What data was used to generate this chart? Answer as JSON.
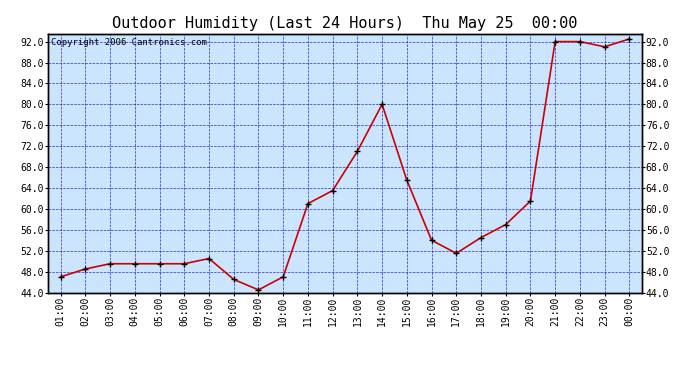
{
  "title": "Outdoor Humidity (Last 24 Hours)  Thu May 25  00:00",
  "copyright": "Copyright 2006 Cantronics.com",
  "x_labels": [
    "01:00",
    "02:00",
    "03:00",
    "04:00",
    "05:00",
    "06:00",
    "07:00",
    "08:00",
    "09:00",
    "10:00",
    "11:00",
    "12:00",
    "13:00",
    "14:00",
    "15:00",
    "16:00",
    "17:00",
    "18:00",
    "19:00",
    "20:00",
    "21:00",
    "22:00",
    "23:00",
    "00:00"
  ],
  "y_values": [
    47.0,
    48.5,
    49.5,
    49.5,
    49.5,
    49.5,
    50.5,
    46.5,
    44.5,
    47.0,
    61.0,
    63.5,
    71.0,
    80.0,
    65.5,
    54.0,
    51.5,
    54.5,
    57.0,
    61.5,
    92.0,
    92.0,
    91.0,
    92.5
  ],
  "line_color": "#cc0000",
  "marker_color": "#000000",
  "plot_bg": "#cce5ff",
  "outer_bg": "#ffffff",
  "grid_color": "#0000bb",
  "title_color": "#000000",
  "ylim": [
    44.0,
    93.5
  ],
  "yticks": [
    44.0,
    48.0,
    52.0,
    56.0,
    60.0,
    64.0,
    68.0,
    72.0,
    76.0,
    80.0,
    84.0,
    88.0,
    92.0
  ],
  "title_fontsize": 11,
  "tick_fontsize": 7,
  "copyright_fontsize": 6.5
}
